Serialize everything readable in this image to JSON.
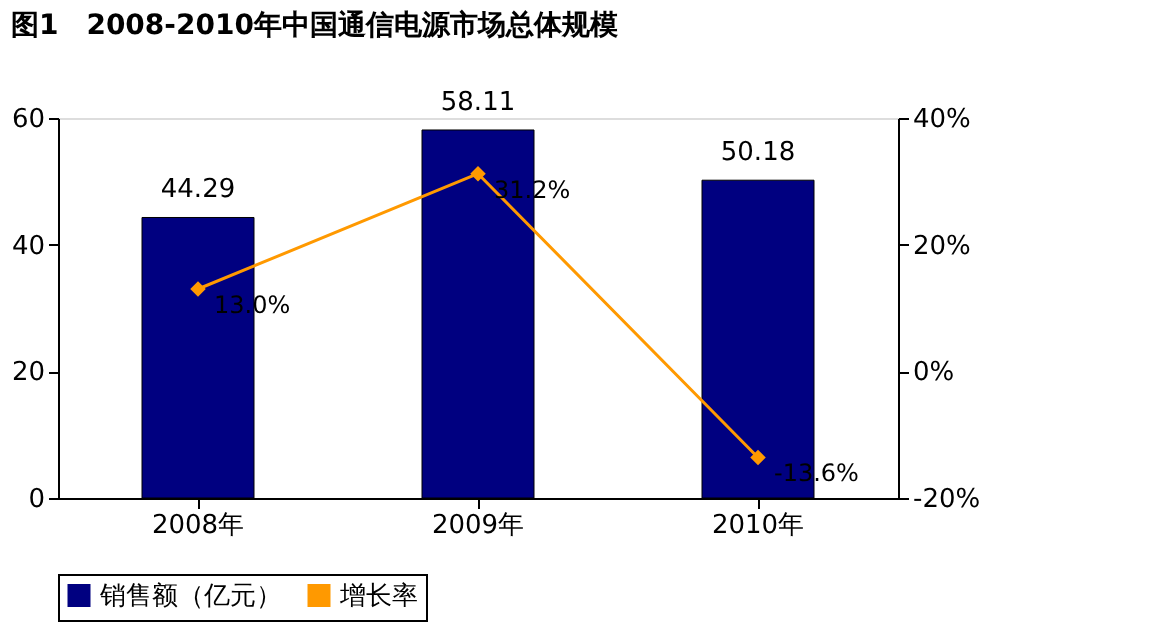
{
  "chart_data": {
    "type": "bar",
    "title": "图1　2008-2010年中国通信电源市场总体规模",
    "categories": [
      "2008年",
      "2009年",
      "2010年"
    ],
    "series": [
      {
        "name": "销售额（亿元）",
        "color": "#000080",
        "values": [
          44.29,
          58.11,
          50.18
        ],
        "value_labels": [
          "44.29",
          "58.11",
          "50.18"
        ]
      },
      {
        "name": "增长率",
        "type": "line",
        "axis": "y2",
        "color": "#ff9900",
        "values": [
          13.0,
          31.2,
          -13.6
        ],
        "value_labels": [
          "13.0%",
          "31.2%",
          "-13.6%"
        ],
        "marker": "diamond"
      }
    ],
    "ylim": [
      0,
      60
    ],
    "yticks": [
      0,
      20,
      40,
      60
    ],
    "y2lim": [
      -20,
      40
    ],
    "y2ticks": [
      {
        "value": -20,
        "label": "-20%"
      },
      {
        "value": 0,
        "label": "0%"
      },
      {
        "value": 20,
        "label": "20%"
      },
      {
        "value": 40,
        "label": "40%"
      }
    ],
    "grid": false,
    "legend": "bottom"
  }
}
